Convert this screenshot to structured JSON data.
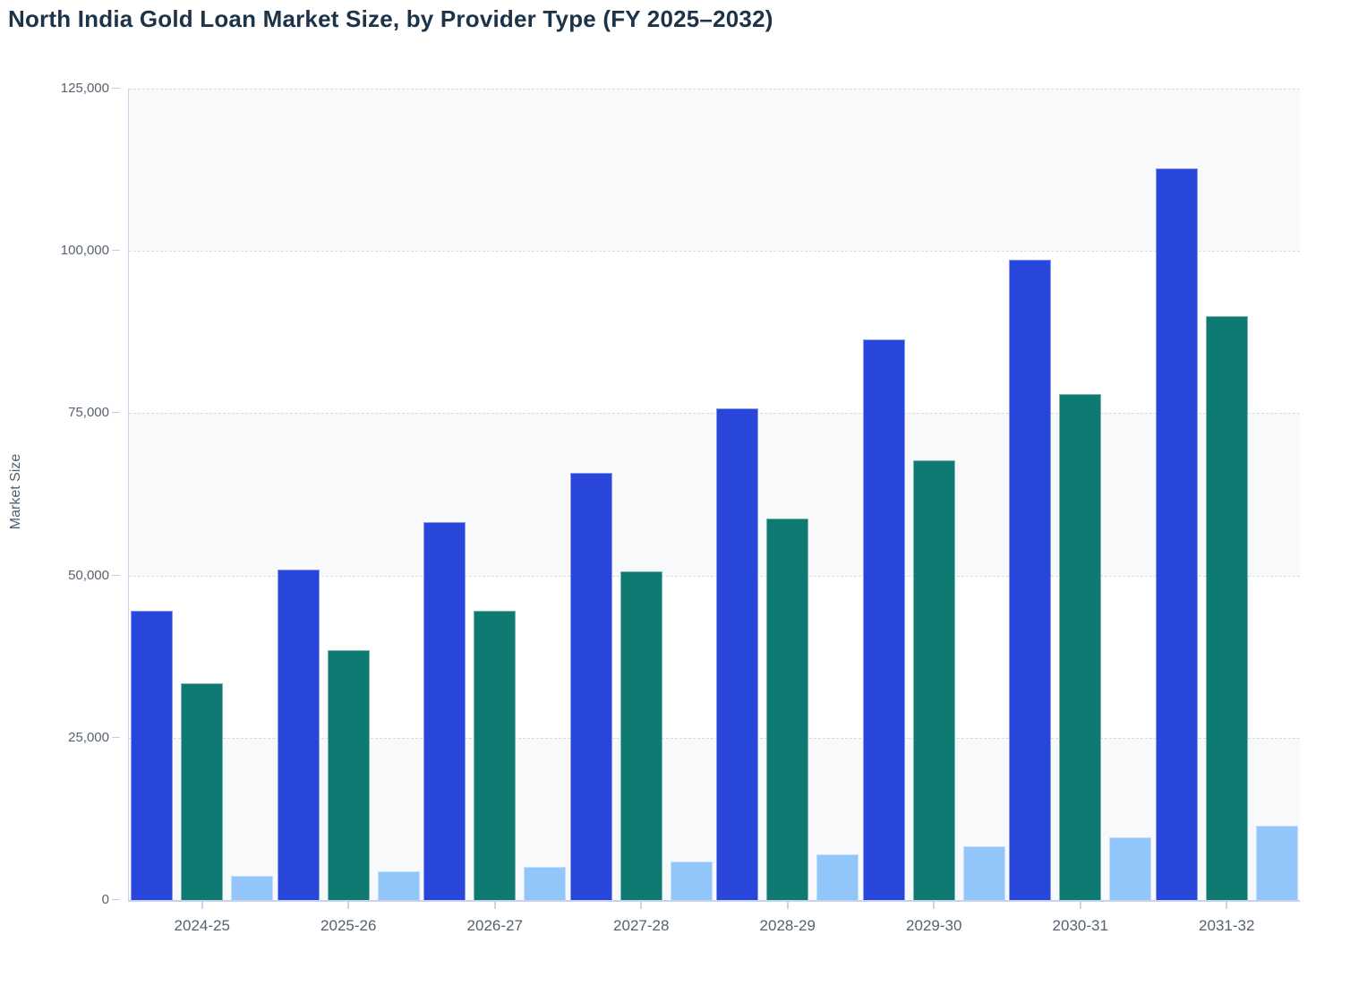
{
  "title": "North India Gold Loan Market Size, by Provider Type (FY 2025–2032)",
  "colors": {
    "title": "#1C3349",
    "axis_title": "#51606E",
    "tick_label": "#57636F",
    "grid_line": "#D9DDE3",
    "axis_line": "#C9D1F0",
    "band_fill": "#F7F9FB",
    "background": "#FFFFFF",
    "series_blue": "#2946DB",
    "series_teal": "#0E7A71",
    "series_light_blue": "#92C5FA"
  },
  "chart_data": {
    "type": "bar",
    "title": "North India Gold Loan Market Size, by Provider Type (FY 2025–2032)",
    "xlabel": "",
    "ylabel": "Market Size",
    "ylim": [
      0,
      125000
    ],
    "ytick_step": 25000,
    "ytick_labels": [
      "0",
      "25,000",
      "50,000",
      "75,000",
      "100,000",
      "125,000"
    ],
    "grid": "horizontal-dashed",
    "background_bands": "alternating stripes from bottom: gray, white, gray, white, gray",
    "legend_position": "none",
    "categories": [
      "2024-25",
      "2025-26",
      "2026-27",
      "2027-28",
      "2028-29",
      "2029-30",
      "2030-31",
      "2031-32"
    ],
    "series": [
      {
        "name": "series-blue",
        "color": "#2946DB",
        "values": [
          44500,
          50900,
          58200,
          65800,
          75800,
          86400,
          98700,
          112700
        ]
      },
      {
        "name": "series-teal",
        "color": "#0E7A71",
        "values": [
          33400,
          38500,
          44500,
          50700,
          58800,
          67800,
          78000,
          89900
        ]
      },
      {
        "name": "series-light-blue",
        "color": "#92C5FA",
        "values": [
          3700,
          4400,
          5100,
          6000,
          7100,
          8300,
          9700,
          11400
        ]
      }
    ]
  }
}
